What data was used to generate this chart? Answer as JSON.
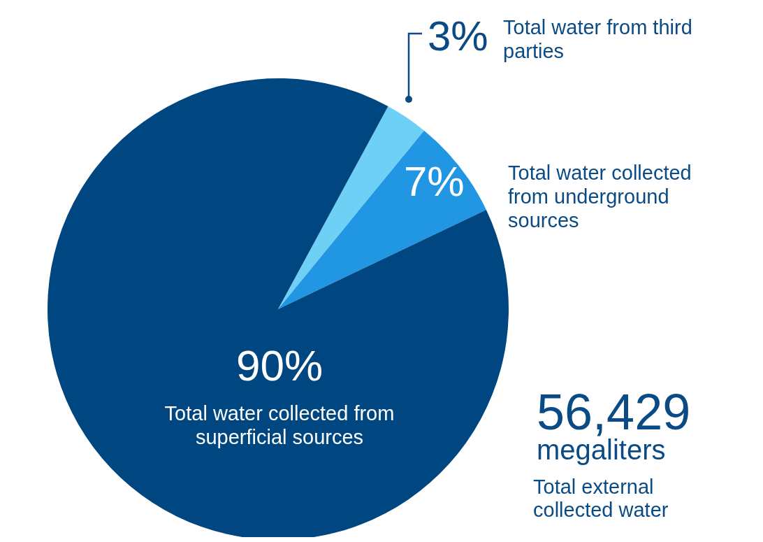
{
  "chart_data": {
    "type": "pie",
    "categories": [
      "Total water from third parties",
      "Total water collected from underground sources",
      "Total water collected from superficial sources"
    ],
    "values": [
      3,
      7,
      90
    ],
    "colors": [
      "#6fd0f5",
      "#2196e3",
      "#004680"
    ],
    "value_labels": [
      "3%",
      "7%",
      "90%"
    ],
    "annotations": [
      "56,429",
      "megaliters",
      "Total external collected water"
    ]
  }
}
